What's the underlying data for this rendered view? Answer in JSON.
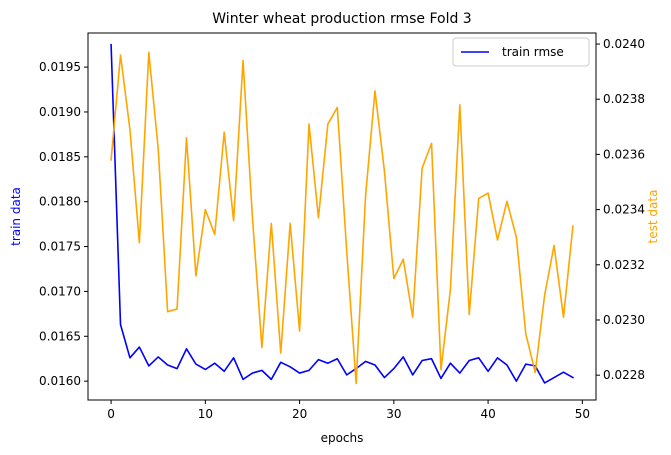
{
  "chart_data": {
    "type": "line",
    "title": "Winter wheat production rmse Fold 3",
    "xlabel": "epochs",
    "ylabel_left": "train data",
    "ylabel_right": "test data",
    "xlim": [
      -2.45,
      51.45
    ],
    "ylim_left": [
      0.01579,
      0.01988
    ],
    "ylim_right": [
      0.02271,
      0.02404
    ],
    "x_ticks": [
      0,
      10,
      20,
      30,
      40,
      50
    ],
    "y_ticks_left": [
      0.016,
      0.0165,
      0.017,
      0.0175,
      0.018,
      0.0185,
      0.019,
      0.0195
    ],
    "y_ticks_left_labels": [
      "0.0160",
      "0.0165",
      "0.0170",
      "0.0175",
      "0.0180",
      "0.0185",
      "0.0190",
      "0.0195"
    ],
    "y_ticks_right": [
      0.0228,
      0.023,
      0.0232,
      0.0234,
      0.0236,
      0.0238,
      0.024
    ],
    "y_ticks_right_labels": [
      "0.0228",
      "0.0230",
      "0.0232",
      "0.0234",
      "0.0236",
      "0.0238",
      "0.0240"
    ],
    "grid": false,
    "legend": {
      "position": "top-right",
      "entries": [
        "train rmse"
      ]
    },
    "series": [
      {
        "name": "train rmse",
        "axis": "left",
        "color": "#0000ff",
        "x": [
          0,
          1,
          2,
          3,
          4,
          5,
          6,
          7,
          8,
          9,
          10,
          11,
          12,
          13,
          14,
          15,
          16,
          17,
          18,
          19,
          20,
          21,
          22,
          23,
          24,
          25,
          26,
          27,
          28,
          29,
          30,
          31,
          32,
          33,
          34,
          35,
          36,
          37,
          38,
          39,
          40,
          41,
          42,
          43,
          44,
          45,
          46,
          47,
          48,
          49
        ],
        "values": [
          0.01975,
          0.01663,
          0.01626,
          0.01638,
          0.01617,
          0.01627,
          0.01618,
          0.01614,
          0.01636,
          0.01619,
          0.01613,
          0.0162,
          0.01611,
          0.01626,
          0.01602,
          0.01609,
          0.01612,
          0.01602,
          0.01621,
          0.01616,
          0.01609,
          0.01612,
          0.01624,
          0.0162,
          0.01625,
          0.01607,
          0.01614,
          0.01622,
          0.01618,
          0.01604,
          0.01614,
          0.01627,
          0.01607,
          0.01623,
          0.01625,
          0.01603,
          0.0162,
          0.01609,
          0.01623,
          0.01626,
          0.01611,
          0.01626,
          0.01618,
          0.016,
          0.01619,
          0.01617,
          0.01598,
          0.01604,
          0.0161,
          0.01604
        ]
      },
      {
        "axis": "right",
        "color": "#ffa500",
        "x": [
          0,
          1,
          2,
          3,
          4,
          5,
          6,
          7,
          8,
          9,
          10,
          11,
          12,
          13,
          14,
          15,
          16,
          17,
          18,
          19,
          20,
          21,
          22,
          23,
          24,
          25,
          26,
          27,
          28,
          29,
          30,
          31,
          32,
          33,
          34,
          35,
          36,
          37,
          38,
          39,
          40,
          41,
          42,
          43,
          44,
          45,
          46,
          47,
          48,
          49
        ],
        "values": [
          0.02358,
          0.02396,
          0.02369,
          0.02328,
          0.02397,
          0.02362,
          0.02303,
          0.02304,
          0.02366,
          0.02316,
          0.0234,
          0.02331,
          0.02368,
          0.02336,
          0.02394,
          0.02337,
          0.0229,
          0.02335,
          0.02288,
          0.02335,
          0.02296,
          0.02371,
          0.02337,
          0.02371,
          0.02377,
          0.02325,
          0.02277,
          0.02345,
          0.02383,
          0.02354,
          0.02315,
          0.02322,
          0.02301,
          0.02355,
          0.02364,
          0.02282,
          0.02311,
          0.02378,
          0.02302,
          0.02344,
          0.02346,
          0.02329,
          0.02343,
          0.0233,
          0.02295,
          0.02281,
          0.02309,
          0.02327,
          0.02301,
          0.02334
        ]
      }
    ]
  }
}
